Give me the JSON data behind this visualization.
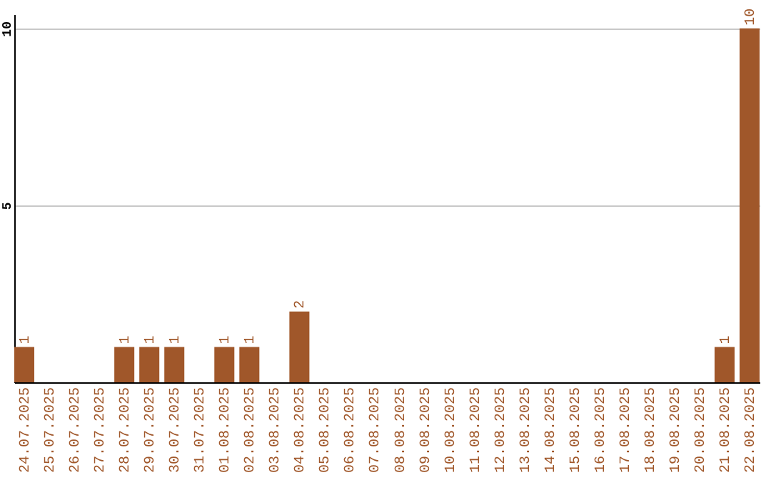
{
  "chart_data": {
    "type": "bar",
    "categories": [
      "24.07.2025",
      "25.07.2025",
      "26.07.2025",
      "27.07.2025",
      "28.07.2025",
      "29.07.2025",
      "30.07.2025",
      "31.07.2025",
      "01.08.2025",
      "02.08.2025",
      "03.08.2025",
      "04.08.2025",
      "05.08.2025",
      "06.08.2025",
      "07.08.2025",
      "08.08.2025",
      "09.08.2025",
      "10.08.2025",
      "11.08.2025",
      "12.08.2025",
      "13.08.2025",
      "14.08.2025",
      "15.08.2025",
      "16.08.2025",
      "17.08.2025",
      "18.08.2025",
      "19.08.2025",
      "20.08.2025",
      "21.08.2025",
      "22.08.2025"
    ],
    "values": [
      1,
      0,
      0,
      0,
      1,
      1,
      1,
      0,
      1,
      1,
      0,
      2,
      0,
      0,
      0,
      0,
      0,
      0,
      0,
      0,
      0,
      0,
      0,
      0,
      0,
      0,
      0,
      0,
      1,
      10
    ],
    "value_labels": [
      "1",
      null,
      null,
      null,
      "1",
      "1",
      "1",
      null,
      "1",
      "1",
      null,
      "2",
      null,
      null,
      null,
      null,
      null,
      null,
      null,
      null,
      null,
      null,
      null,
      null,
      null,
      null,
      null,
      null,
      "1",
      "10"
    ],
    "color": "#a0572a",
    "ylim": [
      0,
      10.4
    ],
    "yticks": [
      5,
      10
    ],
    "grid": "y"
  }
}
